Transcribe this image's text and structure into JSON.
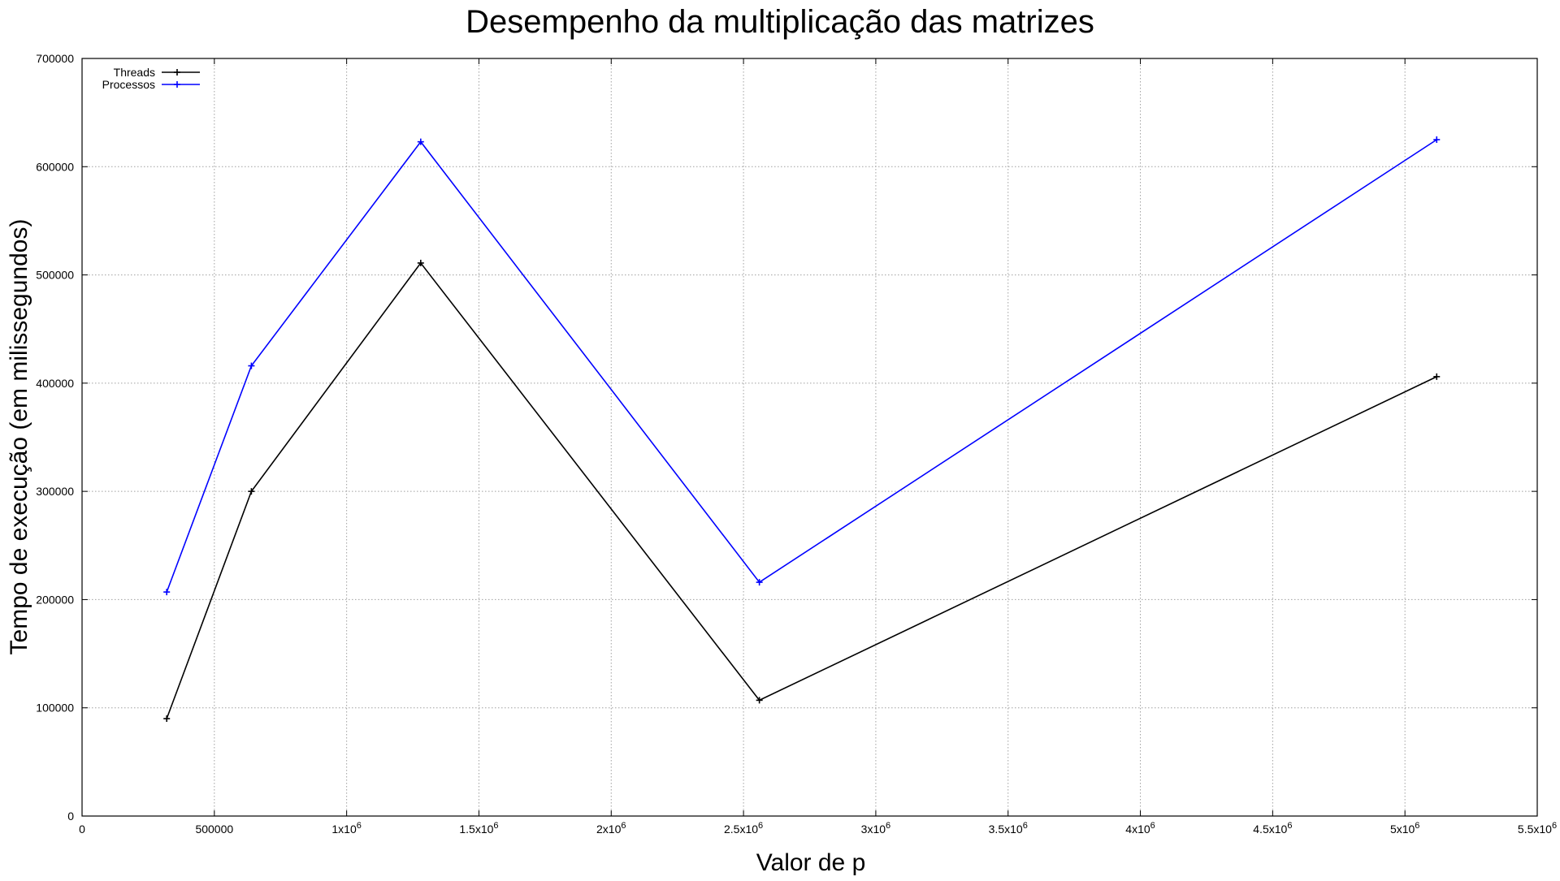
{
  "chart_data": {
    "type": "line",
    "title": "Desempenho da multiplicação das matrizes",
    "xlabel": "Valor de p",
    "ylabel": "Tempo de execução (em milissegundos)",
    "xlim": [
      0,
      5500000
    ],
    "ylim": [
      0,
      700000
    ],
    "x_ticks": [
      {
        "value": 0,
        "base": "0",
        "exp": ""
      },
      {
        "value": 500000,
        "base": "500000",
        "exp": ""
      },
      {
        "value": 1000000,
        "base": "1x10",
        "exp": "6"
      },
      {
        "value": 1500000,
        "base": "1.5x10",
        "exp": "6"
      },
      {
        "value": 2000000,
        "base": "2x10",
        "exp": "6"
      },
      {
        "value": 2500000,
        "base": "2.5x10",
        "exp": "6"
      },
      {
        "value": 3000000,
        "base": "3x10",
        "exp": "6"
      },
      {
        "value": 3500000,
        "base": "3.5x10",
        "exp": "6"
      },
      {
        "value": 4000000,
        "base": "4x10",
        "exp": "6"
      },
      {
        "value": 4500000,
        "base": "4.5x10",
        "exp": "6"
      },
      {
        "value": 5000000,
        "base": "5x10",
        "exp": "6"
      },
      {
        "value": 5500000,
        "base": "5.5x10",
        "exp": "6"
      }
    ],
    "y_ticks": [
      {
        "value": 0,
        "label": "0"
      },
      {
        "value": 100000,
        "label": "100000"
      },
      {
        "value": 200000,
        "label": "200000"
      },
      {
        "value": 300000,
        "label": "300000"
      },
      {
        "value": 400000,
        "label": "400000"
      },
      {
        "value": 500000,
        "label": "500000"
      },
      {
        "value": 600000,
        "label": "600000"
      },
      {
        "value": 700000,
        "label": "700000"
      }
    ],
    "grid": true,
    "legend_position": "top-left",
    "x": [
      320000,
      640000,
      1280000,
      2560000,
      5120000
    ],
    "series": [
      {
        "name": "Threads",
        "color": "#000000",
        "values": [
          90000,
          300000,
          511000,
          107000,
          406000
        ]
      },
      {
        "name": "Processos",
        "color": "#0000ff",
        "values": [
          207000,
          416000,
          623000,
          216000,
          625000
        ]
      }
    ]
  }
}
